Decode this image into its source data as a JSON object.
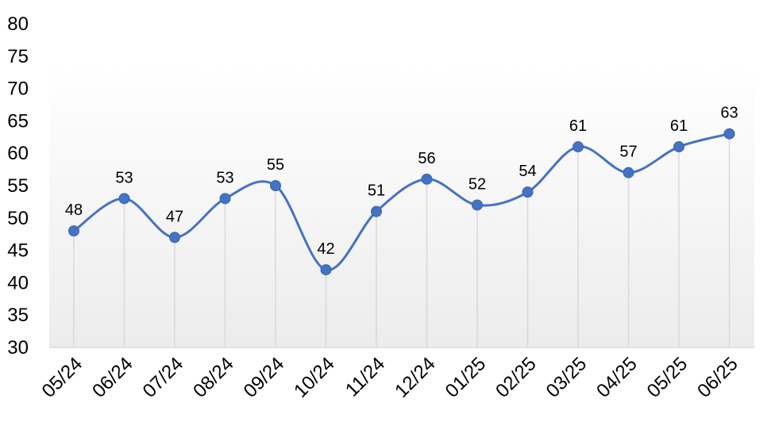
{
  "chart_data": {
    "type": "line",
    "title": "",
    "xlabel": "",
    "ylabel": "",
    "categories": [
      "05/24",
      "06/24",
      "07/24",
      "08/24",
      "09/24",
      "10/24",
      "11/24",
      "12/24",
      "01/25",
      "02/25",
      "03/25",
      "04/25",
      "05/25",
      "06/25"
    ],
    "series": [
      {
        "values": [
          48,
          53,
          47,
          53,
          55,
          42,
          51,
          56,
          52,
          54,
          61,
          57,
          61,
          63
        ]
      }
    ],
    "data_labels": [
      "48",
      "53",
      "47",
      "53",
      "55",
      "42",
      "51",
      "56",
      "52",
      "54",
      "61",
      "57",
      "61",
      "63"
    ],
    "ylim": [
      30,
      80
    ],
    "y_ticks": [
      30,
      35,
      40,
      45,
      50,
      55,
      60,
      65,
      70,
      75,
      80
    ],
    "y_tick_labels": [
      "30",
      "35",
      "40",
      "45",
      "50",
      "55",
      "60",
      "65",
      "70",
      "75",
      "80"
    ],
    "smooth": true,
    "drop_lines": true,
    "grid": false,
    "legend": "none",
    "colors": {
      "line": "#4472C4",
      "marker": "#4472C4",
      "drop_line": "#D9D9D9",
      "axis": "#D9D9D9"
    }
  }
}
